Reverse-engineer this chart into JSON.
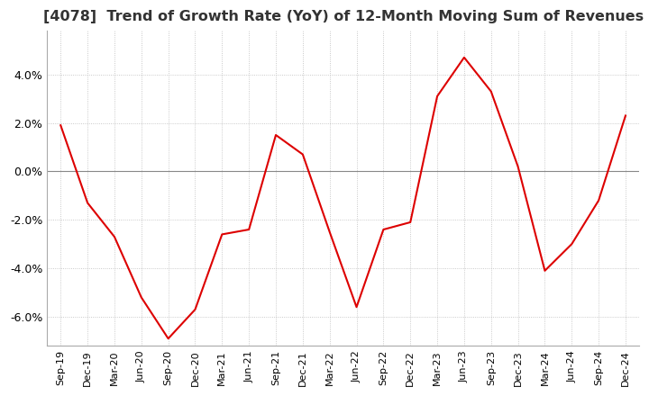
{
  "title": "[4078]  Trend of Growth Rate (YoY) of 12-Month Moving Sum of Revenues",
  "title_fontsize": 11.5,
  "line_color": "#dd0000",
  "background_color": "#ffffff",
  "grid_color": "#bbbbbb",
  "zero_line_color": "#888888",
  "ylim": [
    -7.2,
    5.8
  ],
  "yticks": [
    4.0,
    2.0,
    0.0,
    -2.0,
    -4.0,
    -6.0
  ],
  "x_labels": [
    "Sep-19",
    "Dec-19",
    "Mar-20",
    "Jun-20",
    "Sep-20",
    "Dec-20",
    "Mar-21",
    "Jun-21",
    "Sep-21",
    "Dec-21",
    "Mar-22",
    "Jun-22",
    "Sep-22",
    "Dec-22",
    "Mar-23",
    "Jun-23",
    "Sep-23",
    "Dec-23",
    "Mar-24",
    "Jun-24",
    "Sep-24",
    "Dec-24"
  ],
  "values": [
    1.9,
    -1.3,
    -2.7,
    -5.2,
    -6.9,
    -5.7,
    -2.6,
    -2.4,
    1.5,
    0.7,
    -2.5,
    -5.6,
    -2.4,
    -2.1,
    3.1,
    4.7,
    3.3,
    0.2,
    -4.1,
    -3.0,
    -1.2,
    2.3
  ]
}
